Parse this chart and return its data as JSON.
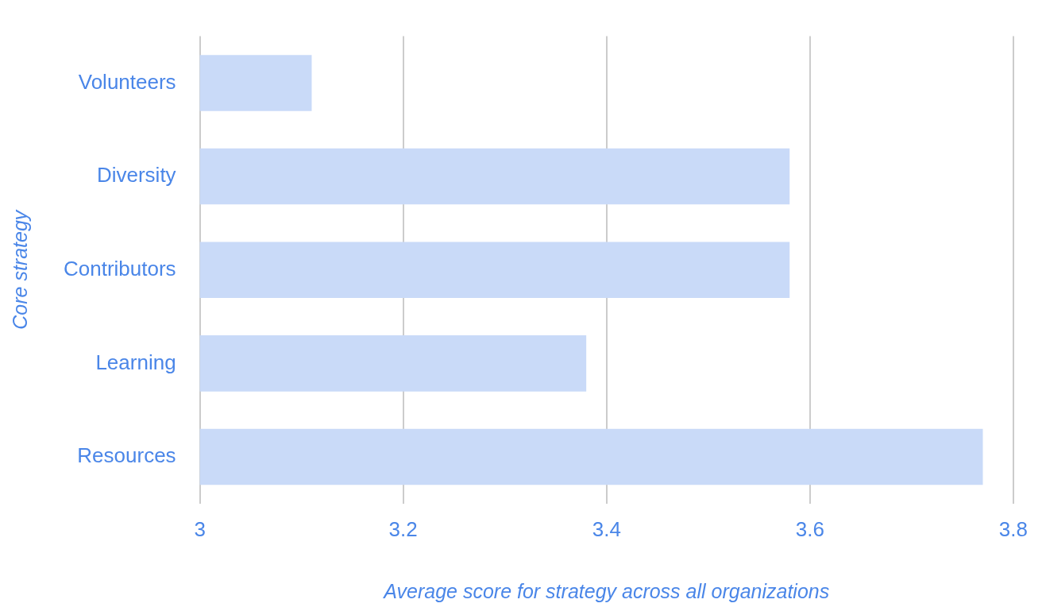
{
  "chart_data": {
    "type": "bar",
    "orientation": "horizontal",
    "xlabel": "Average score for strategy across all organizations",
    "ylabel": "Core strategy",
    "categories": [
      "Volunteers",
      "Diversity",
      "Contributors",
      "Learning",
      "Resources"
    ],
    "values": [
      3.11,
      3.58,
      3.58,
      3.38,
      3.77
    ],
    "color": "#c9daf8",
    "xlim": [
      3,
      3.8
    ],
    "xticks": [
      3,
      3.2,
      3.4,
      3.6,
      3.8
    ],
    "grid": "x",
    "legend": false
  }
}
